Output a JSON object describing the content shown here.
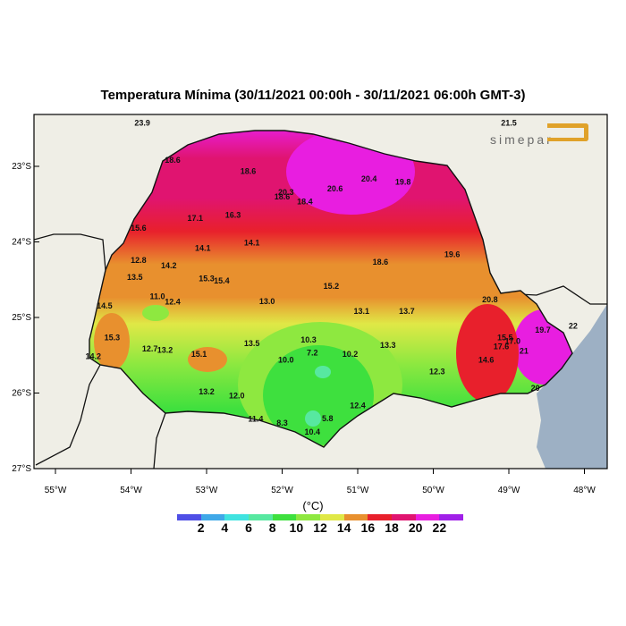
{
  "title": "Temperatura Mínima (30/11/2021 00:00h - 30/11/2021 06:00h GMT-3)",
  "logo_text": "simepar",
  "map": {
    "lon_range": [
      -55.5,
      -47.75
    ],
    "lat_range": [
      -27.0,
      -22.5
    ],
    "lon_ticks": [
      "55°W",
      "54°W",
      "53°W",
      "52°W",
      "51°W",
      "50°W",
      "49°W",
      "48°W"
    ],
    "lat_ticks": [
      "23°S",
      "24°S",
      "25°S",
      "26°S",
      "27°S"
    ],
    "land_color": "#efeee6",
    "ocean_color": "#9db0c4"
  },
  "legend": {
    "unit": "(°C)",
    "ticks": [
      "2",
      "4",
      "6",
      "8",
      "10",
      "12",
      "14",
      "16",
      "18",
      "20",
      "22"
    ],
    "colors": [
      "#4f4fe6",
      "#3fa8e8",
      "#3fe3e0",
      "#57e8a0",
      "#3ee03e",
      "#8ee840",
      "#e0e846",
      "#e8902e",
      "#e8202c",
      "#e01470",
      "#e81ee0",
      "#a020e8"
    ]
  },
  "stations": [
    {
      "v": "23.9",
      "lon": -53.85,
      "lat": -22.46
    },
    {
      "v": "21.5",
      "lon": -49.0,
      "lat": -22.46
    },
    {
      "v": "18.6",
      "lon": -53.45,
      "lat": -22.95
    },
    {
      "v": "18.6",
      "lon": -52.45,
      "lat": -23.1
    },
    {
      "v": "20.3",
      "lon": -51.95,
      "lat": -23.38
    },
    {
      "v": "18.6",
      "lon": -52.0,
      "lat": -23.44
    },
    {
      "v": "18.4",
      "lon": -51.7,
      "lat": -23.5
    },
    {
      "v": "20.6",
      "lon": -51.3,
      "lat": -23.33
    },
    {
      "v": "20.4",
      "lon": -50.85,
      "lat": -23.2
    },
    {
      "v": "19.8",
      "lon": -50.4,
      "lat": -23.24
    },
    {
      "v": "17.1",
      "lon": -53.15,
      "lat": -23.72
    },
    {
      "v": "16.3",
      "lon": -52.65,
      "lat": -23.68
    },
    {
      "v": "15.6",
      "lon": -53.9,
      "lat": -23.85
    },
    {
      "v": "14.1",
      "lon": -52.4,
      "lat": -24.05
    },
    {
      "v": "14.1",
      "lon": -53.05,
      "lat": -24.12
    },
    {
      "v": "12.8",
      "lon": -53.9,
      "lat": -24.28
    },
    {
      "v": "14.2",
      "lon": -53.5,
      "lat": -24.35
    },
    {
      "v": "13.5",
      "lon": -53.95,
      "lat": -24.5
    },
    {
      "v": "15.3",
      "lon": -53.0,
      "lat": -24.52
    },
    {
      "v": "15.4",
      "lon": -52.8,
      "lat": -24.55
    },
    {
      "v": "15.2",
      "lon": -51.35,
      "lat": -24.62
    },
    {
      "v": "18.6",
      "lon": -50.7,
      "lat": -24.3
    },
    {
      "v": "19.6",
      "lon": -49.75,
      "lat": -24.2
    },
    {
      "v": "11.0",
      "lon": -53.65,
      "lat": -24.76
    },
    {
      "v": "12.4",
      "lon": -53.45,
      "lat": -24.83
    },
    {
      "v": "13.0",
      "lon": -52.2,
      "lat": -24.82
    },
    {
      "v": "14.5",
      "lon": -54.35,
      "lat": -24.88
    },
    {
      "v": "13.1",
      "lon": -50.95,
      "lat": -24.95
    },
    {
      "v": "13.7",
      "lon": -50.35,
      "lat": -24.95
    },
    {
      "v": "20.8",
      "lon": -49.25,
      "lat": -24.8
    },
    {
      "v": "15.3",
      "lon": -54.25,
      "lat": -25.3
    },
    {
      "v": "12.7",
      "lon": -53.75,
      "lat": -25.45
    },
    {
      "v": "13.2",
      "lon": -53.55,
      "lat": -25.47
    },
    {
      "v": "15.1",
      "lon": -53.1,
      "lat": -25.52
    },
    {
      "v": "13.5",
      "lon": -52.4,
      "lat": -25.38
    },
    {
      "v": "10.3",
      "lon": -51.65,
      "lat": -25.33
    },
    {
      "v": "7.2",
      "lon": -51.6,
      "lat": -25.5
    },
    {
      "v": "10.2",
      "lon": -51.1,
      "lat": -25.52
    },
    {
      "v": "10.0",
      "lon": -51.95,
      "lat": -25.6
    },
    {
      "v": "13.3",
      "lon": -50.6,
      "lat": -25.4
    },
    {
      "v": "12.3",
      "lon": -49.95,
      "lat": -25.75
    },
    {
      "v": "14.6",
      "lon": -49.3,
      "lat": -25.6
    },
    {
      "v": "15.5",
      "lon": -49.05,
      "lat": -25.3
    },
    {
      "v": "17.0",
      "lon": -48.95,
      "lat": -25.35
    },
    {
      "v": "17.6",
      "lon": -49.1,
      "lat": -25.42
    },
    {
      "v": "19.7",
      "lon": -48.55,
      "lat": -25.2
    },
    {
      "v": "22",
      "lon": -48.15,
      "lat": -25.15
    },
    {
      "v": "21",
      "lon": -48.8,
      "lat": -25.48
    },
    {
      "v": "13.2",
      "lon": -53.0,
      "lat": -26.02
    },
    {
      "v": "12.0",
      "lon": -52.6,
      "lat": -26.07
    },
    {
      "v": "12.4",
      "lon": -51.0,
      "lat": -26.2
    },
    {
      "v": "5.8",
      "lon": -51.4,
      "lat": -26.37
    },
    {
      "v": "11.4",
      "lon": -52.35,
      "lat": -26.38
    },
    {
      "v": "8.3",
      "lon": -52.0,
      "lat": -26.43
    },
    {
      "v": "10.4",
      "lon": -51.6,
      "lat": -26.55
    },
    {
      "v": "14.2",
      "lon": -54.5,
      "lat": -25.55
    },
    {
      "v": "20",
      "lon": -48.65,
      "lat": -25.97
    }
  ]
}
